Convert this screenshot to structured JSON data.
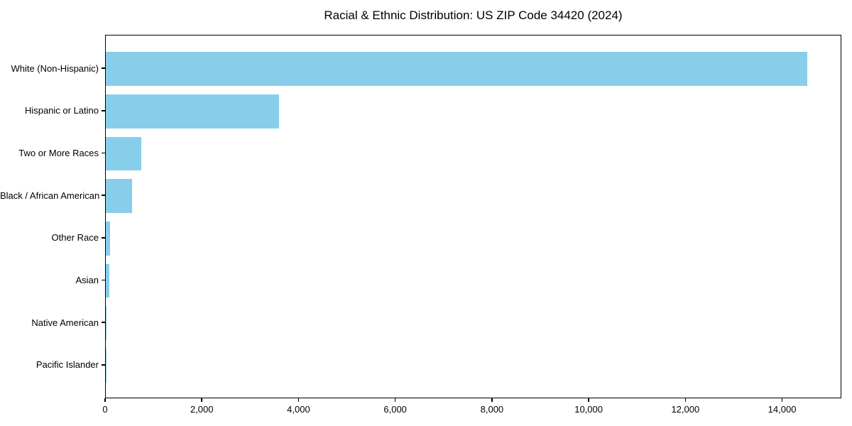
{
  "chart_data": {
    "type": "bar",
    "orientation": "horizontal",
    "title": "Racial & Ethnic Distribution: US ZIP Code 34420 (2024)",
    "categories": [
      "White (Non-Hispanic)",
      "Hispanic or Latino",
      "Two or More Races",
      "Black / African American",
      "Other Race",
      "Asian",
      "Native American",
      "Pacific Islander"
    ],
    "values": [
      14500,
      3580,
      730,
      550,
      90,
      70,
      15,
      4
    ],
    "xlabel": "",
    "ylabel": "",
    "xlim": [
      0,
      15225
    ],
    "xticks": [
      0,
      2000,
      4000,
      6000,
      8000,
      10000,
      12000,
      14000
    ],
    "xtick_labels": [
      "0",
      "2,000",
      "4,000",
      "6,000",
      "8,000",
      "10,000",
      "12,000",
      "14,000"
    ],
    "grid": false,
    "legend": null,
    "bar_color": "#87CEEB"
  },
  "colors": {
    "bar": "#87CEEB",
    "spine": "#000000",
    "text": "#000000",
    "background": "#ffffff"
  }
}
